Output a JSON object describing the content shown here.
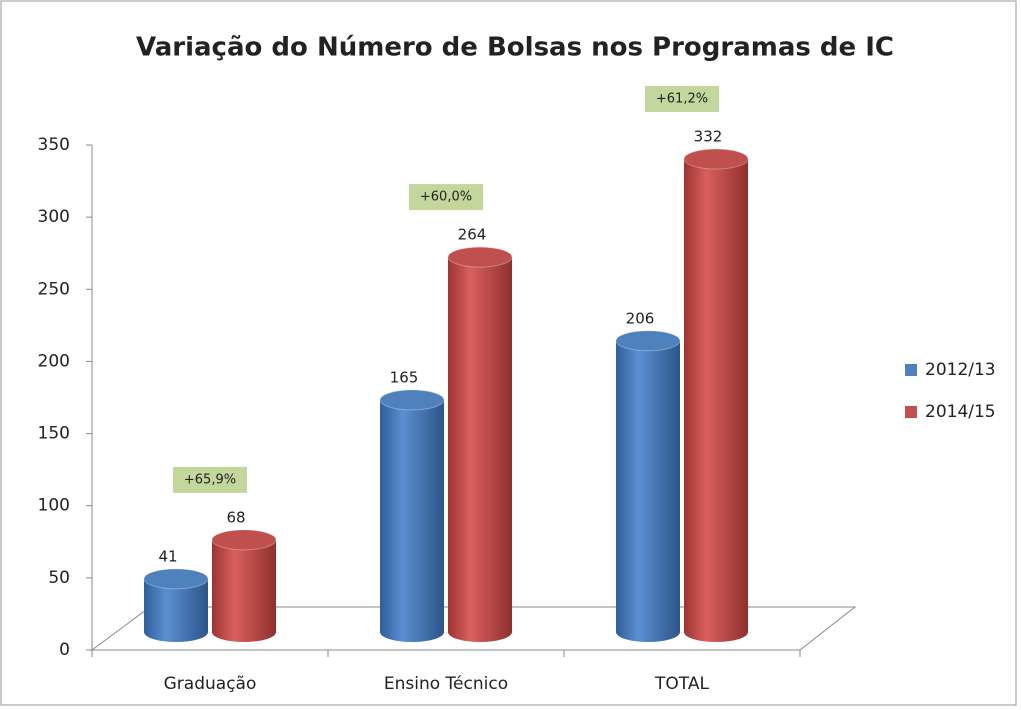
{
  "chart_data": {
    "type": "bar3d",
    "title": "Variação do Número de Bolsas nos Programas de IC",
    "categories": [
      "Graduação",
      "Ensino Técnico",
      "TOTAL"
    ],
    "series": [
      {
        "name": "2012/13",
        "color": "#4f81bd",
        "values": [
          41,
          165,
          206
        ]
      },
      {
        "name": "2014/15",
        "color": "#c0504d",
        "values": [
          68,
          264,
          332
        ]
      }
    ],
    "annotations": [
      "+65,9%",
      "+60,0%",
      "+61,2%"
    ],
    "ylim": [
      0,
      350
    ],
    "yticks": [
      0,
      50,
      100,
      150,
      200,
      250,
      300,
      350
    ],
    "legend": "right"
  }
}
